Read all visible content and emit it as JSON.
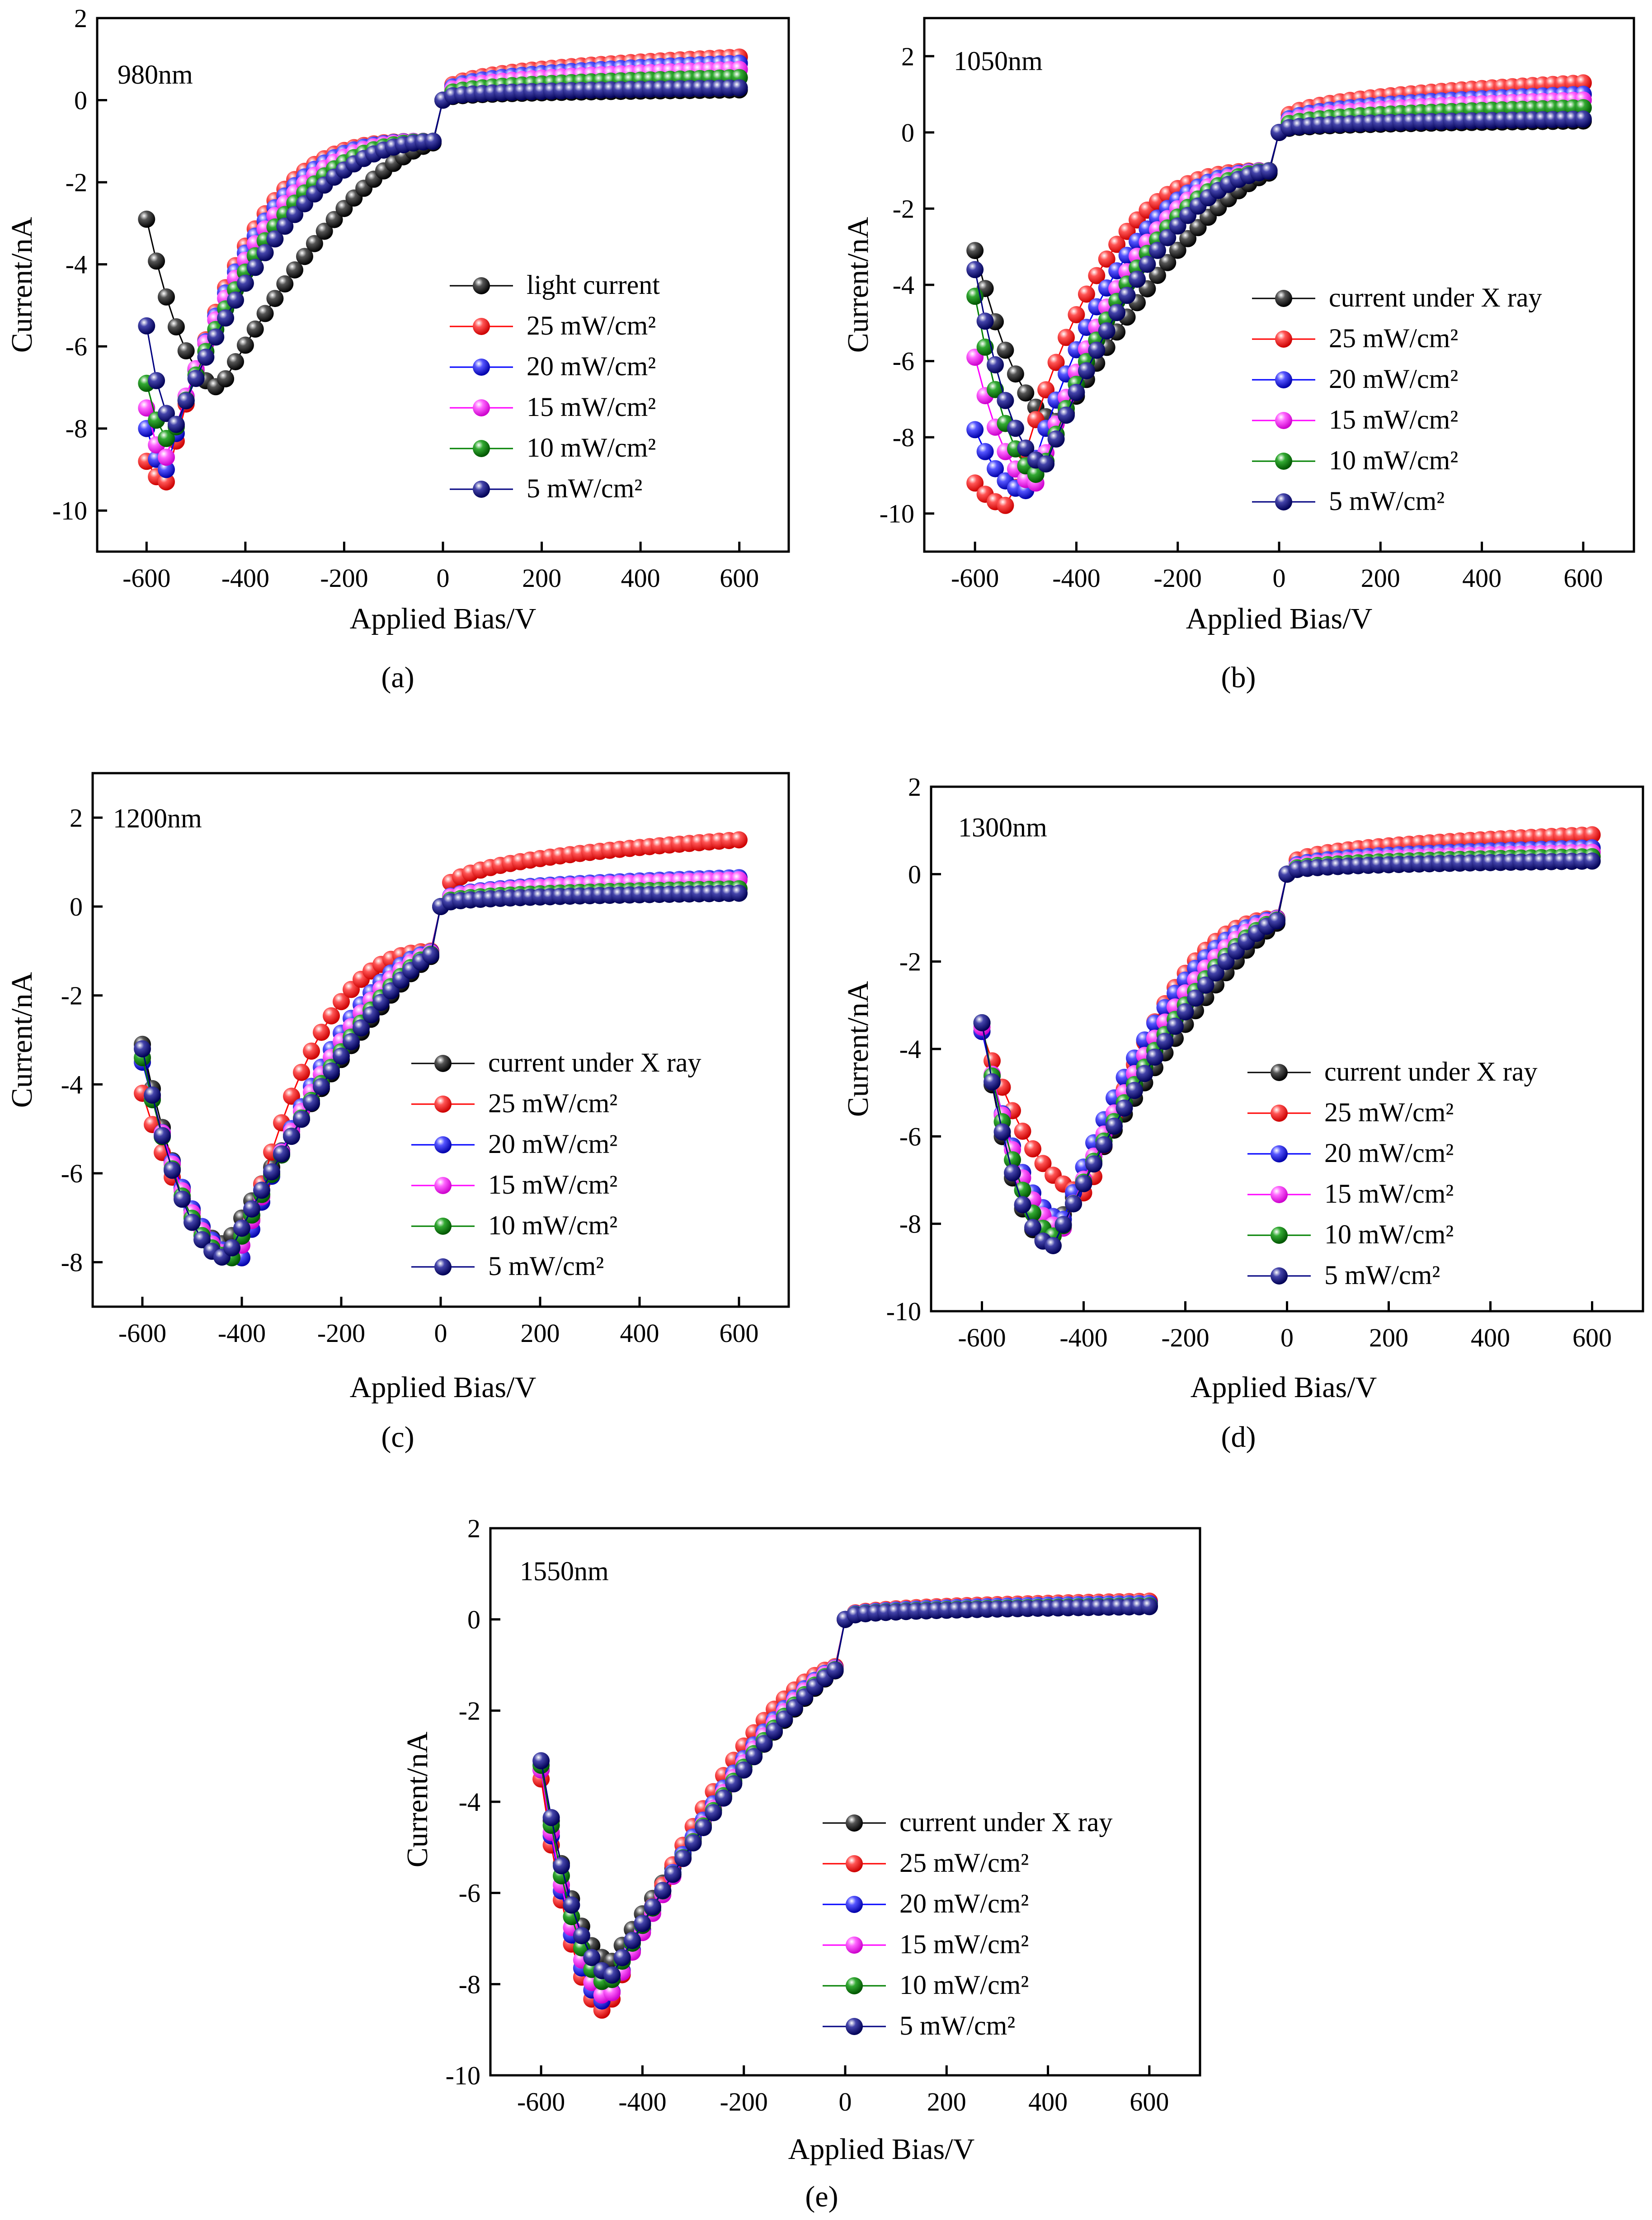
{
  "figure": {
    "background": "#ffffff"
  },
  "colors": {
    "light": "#000000",
    "25": "#ff0000",
    "20": "#0000ff",
    "15": "#ff00ff",
    "10": "#008000",
    "5": "#000080"
  },
  "chart_data": [
    {
      "id": "a",
      "type": "scatter",
      "panel_label": "(a)",
      "wavelength_label": "980nm",
      "xlabel": "Applied Bias/V",
      "ylabel": "Current/nA",
      "xlim": [
        -700,
        700
      ],
      "ylim": [
        -11,
        2
      ],
      "xticks": [
        -600,
        -400,
        -200,
        0,
        200,
        400,
        600
      ],
      "yticks": [
        -10,
        -8,
        -6,
        -4,
        -2,
        0,
        2
      ],
      "legend_position": "right",
      "series": [
        {
          "name": "light current",
          "key": "light",
          "vmin": -7.0,
          "xmin": -450,
          "v600": -2.9,
          "pos": 0.25,
          "r": 1.6
        },
        {
          "name": "25 mW/cm²",
          "key": "25",
          "vmin": -9.3,
          "xmin": -560,
          "v600": -8.8,
          "pos": 1.05,
          "r": 3.5
        },
        {
          "name": "20 mW/cm²",
          "key": "20",
          "vmin": -9.0,
          "xmin": -560,
          "v600": -8.0,
          "pos": 0.9,
          "r": 3.2
        },
        {
          "name": "15 mW/cm²",
          "key": "15",
          "vmin": -8.7,
          "xmin": -560,
          "v600": -7.5,
          "pos": 0.75,
          "r": 2.9
        },
        {
          "name": "10 mW/cm²",
          "key": "10",
          "vmin": -8.3,
          "xmin": -550,
          "v600": -6.9,
          "pos": 0.55,
          "r": 2.6
        },
        {
          "name": "5 mW/cm²",
          "key": "5",
          "vmin": -7.9,
          "xmin": -540,
          "v600": -5.5,
          "pos": 0.3,
          "r": 2.3
        }
      ]
    },
    {
      "id": "b",
      "type": "scatter",
      "panel_label": "(b)",
      "wavelength_label": "1050nm",
      "xlabel": "Applied Bias/V",
      "ylabel": "Current/nA",
      "xlim": [
        -700,
        700
      ],
      "ylim": [
        -11,
        3
      ],
      "xticks": [
        -600,
        -400,
        -200,
        0,
        200,
        400,
        600
      ],
      "yticks": [
        -10,
        -8,
        -6,
        -4,
        -2,
        0,
        2
      ],
      "legend_position": "right",
      "series": [
        {
          "name": "current under X ray",
          "key": "light",
          "vmin": -7.6,
          "xmin": -430,
          "v600": -3.1,
          "pos": 0.3,
          "r": 1.5
        },
        {
          "name": "25 mW/cm²",
          "key": "25",
          "vmin": -9.8,
          "xmin": -530,
          "v600": -9.2,
          "pos": 1.3,
          "r": 3.0
        },
        {
          "name": "20 mW/cm²",
          "key": "20",
          "vmin": -9.4,
          "xmin": -500,
          "v600": -7.8,
          "pos": 1.0,
          "r": 2.6
        },
        {
          "name": "15 mW/cm²",
          "key": "15",
          "vmin": -9.2,
          "xmin": -480,
          "v600": -5.9,
          "pos": 0.85,
          "r": 2.4
        },
        {
          "name": "10 mW/cm²",
          "key": "10",
          "vmin": -9.0,
          "xmin": -470,
          "v600": -4.3,
          "pos": 0.65,
          "r": 2.2
        },
        {
          "name": "5 mW/cm²",
          "key": "5",
          "vmin": -8.7,
          "xmin": -460,
          "v600": -3.6,
          "pos": 0.35,
          "r": 2.0
        }
      ]
    },
    {
      "id": "c",
      "type": "scatter",
      "panel_label": "(c)",
      "wavelength_label": "1200nm",
      "xlabel": "Applied Bias/V",
      "ylabel": "Current/nA",
      "xlim": [
        -700,
        700
      ],
      "ylim": [
        -9,
        3
      ],
      "xticks": [
        -600,
        -400,
        -200,
        0,
        200,
        400,
        600
      ],
      "yticks": [
        -8,
        -6,
        -4,
        -2,
        0,
        2
      ],
      "legend_position": "right",
      "series": [
        {
          "name": "current under X ray",
          "key": "light",
          "vmin": -7.6,
          "xmin": -430,
          "v600": -3.1,
          "pos": 0.3,
          "r": 1.3
        },
        {
          "name": "25 mW/cm²",
          "key": "25",
          "vmin": -7.9,
          "xmin": -400,
          "v600": -4.2,
          "pos": 1.5,
          "r": 2.6
        },
        {
          "name": "20 mW/cm²",
          "key": "20",
          "vmin": -7.9,
          "xmin": -400,
          "v600": -3.5,
          "pos": 0.65,
          "r": 1.9
        },
        {
          "name": "15 mW/cm²",
          "key": "15",
          "vmin": -7.9,
          "xmin": -410,
          "v600": -3.4,
          "pos": 0.6,
          "r": 1.7
        },
        {
          "name": "10 mW/cm²",
          "key": "10",
          "vmin": -7.9,
          "xmin": -420,
          "v600": -3.4,
          "pos": 0.4,
          "r": 1.5
        },
        {
          "name": "5 mW/cm²",
          "key": "5",
          "vmin": -7.9,
          "xmin": -430,
          "v600": -3.2,
          "pos": 0.3,
          "r": 1.4
        }
      ]
    },
    {
      "id": "d",
      "type": "scatter",
      "panel_label": "(d)",
      "wavelength_label": "1300nm",
      "xlabel": "Applied Bias/V",
      "ylabel": "Current/nA",
      "xlim": [
        -700,
        700
      ],
      "ylim": [
        -10,
        2
      ],
      "xticks": [
        -600,
        -400,
        -200,
        0,
        200,
        400,
        600
      ],
      "yticks": [
        -10,
        -8,
        -6,
        -4,
        -2,
        0,
        2
      ],
      "legend_position": "right",
      "series": [
        {
          "name": "current under X ray",
          "key": "light",
          "vmin": -8.4,
          "xmin": -470,
          "v600": -3.4,
          "pos": 0.3,
          "r": 1.3
        },
        {
          "name": "25 mW/cm²",
          "key": "25",
          "vmin": -7.3,
          "xmin": -390,
          "v600": -3.6,
          "pos": 0.9,
          "r": 2.4
        },
        {
          "name": "20 mW/cm²",
          "key": "20",
          "vmin": -7.9,
          "xmin": -440,
          "v600": -3.6,
          "pos": 0.6,
          "r": 2.0
        },
        {
          "name": "15 mW/cm²",
          "key": "15",
          "vmin": -8.1,
          "xmin": -440,
          "v600": -3.5,
          "pos": 0.5,
          "r": 1.8
        },
        {
          "name": "10 mW/cm²",
          "key": "10",
          "vmin": -8.3,
          "xmin": -450,
          "v600": -3.4,
          "pos": 0.4,
          "r": 1.6
        },
        {
          "name": "5 mW/cm²",
          "key": "5",
          "vmin": -8.5,
          "xmin": -460,
          "v600": -3.4,
          "pos": 0.3,
          "r": 1.5
        }
      ]
    },
    {
      "id": "e",
      "type": "scatter",
      "panel_label": "(e)",
      "wavelength_label": "1550nm",
      "xlabel": "Applied Bias/V",
      "ylabel": "Current/nA",
      "xlim": [
        -700,
        700
      ],
      "ylim": [
        -10,
        2
      ],
      "xticks": [
        -600,
        -400,
        -200,
        0,
        200,
        400,
        600
      ],
      "yticks": [
        -10,
        -8,
        -6,
        -4,
        -2,
        0,
        2
      ],
      "legend_position": "right",
      "series": [
        {
          "name": "current under X ray",
          "key": "light",
          "vmin": -7.5,
          "xmin": -460,
          "v600": -3.3,
          "pos": 0.3,
          "r": 1.25
        },
        {
          "name": "25 mW/cm²",
          "key": "25",
          "vmin": -8.6,
          "xmin": -470,
          "v600": -3.5,
          "pos": 0.4,
          "r": 1.7
        },
        {
          "name": "20 mW/cm²",
          "key": "20",
          "vmin": -8.4,
          "xmin": -470,
          "v600": -3.3,
          "pos": 0.35,
          "r": 1.5
        },
        {
          "name": "15 mW/cm²",
          "key": "15",
          "vmin": -8.3,
          "xmin": -465,
          "v600": -3.3,
          "pos": 0.3,
          "r": 1.45
        },
        {
          "name": "10 mW/cm²",
          "key": "10",
          "vmin": -8.0,
          "xmin": -465,
          "v600": -3.2,
          "pos": 0.3,
          "r": 1.35
        },
        {
          "name": "5 mW/cm²",
          "key": "5",
          "vmin": -7.8,
          "xmin": -460,
          "v600": -3.1,
          "pos": 0.28,
          "r": 1.3
        }
      ]
    }
  ]
}
